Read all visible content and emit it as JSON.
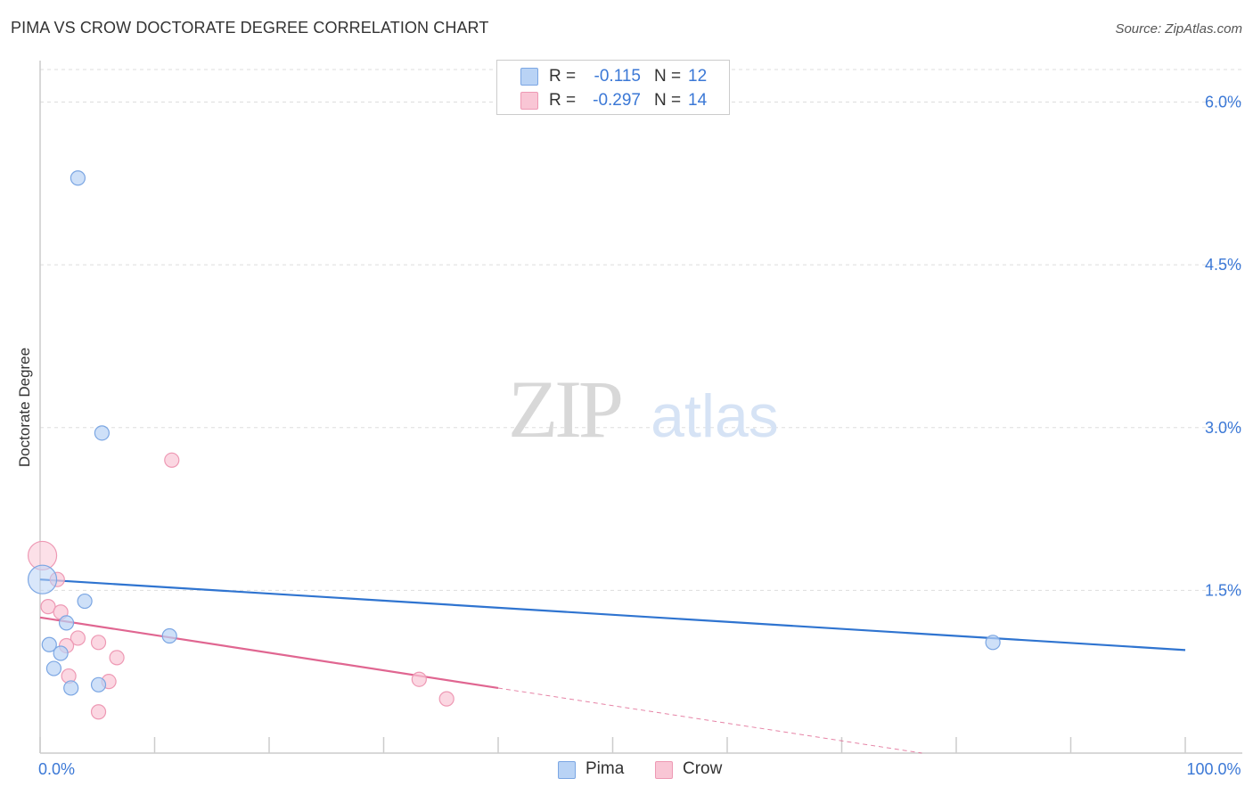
{
  "title": "PIMA VS CROW DOCTORATE DEGREE CORRELATION CHART",
  "source": "Source: ZipAtlas.com",
  "watermark": {
    "zip": "ZIP",
    "atlas": "atlas"
  },
  "legend_top": [
    {
      "series": "Pima",
      "r_label": "R =",
      "r_value": "-0.115",
      "n_label": "N =",
      "n_value": "12",
      "color": "#b9d3f5",
      "stroke": "#7ba6e3"
    },
    {
      "series": "Crow",
      "r_label": "R =",
      "r_value": "-0.297",
      "n_label": "N =",
      "n_value": "14",
      "color": "#f9c6d5",
      "stroke": "#ee99b4"
    }
  ],
  "legend_bottom": [
    {
      "label": "Pima",
      "color": "#b9d3f5",
      "stroke": "#7ba6e3"
    },
    {
      "label": "Crow",
      "color": "#f9c6d5",
      "stroke": "#ee99b4"
    }
  ],
  "colors": {
    "pima_line": "#2f74d0",
    "crow_line": "#e06691",
    "tick_label": "#3b78d6",
    "grid": "#dddddd",
    "axis": "#cccccc"
  },
  "chart_data": {
    "type": "scatter",
    "title": "PIMA VS CROW DOCTORATE DEGREE CORRELATION CHART",
    "xlabel": "",
    "ylabel": "Doctorate Degree",
    "xlim": [
      0,
      100
    ],
    "ylim": [
      0,
      6.3
    ],
    "x_tick_labels": [
      {
        "value": 0,
        "label": "0.0%"
      },
      {
        "value": 100,
        "label": "100.0%"
      }
    ],
    "y_tick_labels": [
      {
        "value": 6.0,
        "label": "6.0%"
      },
      {
        "value": 4.5,
        "label": "4.5%"
      },
      {
        "value": 3.0,
        "label": "3.0%"
      },
      {
        "value": 1.5,
        "label": "1.5%"
      }
    ],
    "x_minor_ticks": [
      0,
      10,
      20,
      30,
      40,
      50,
      60,
      70,
      80,
      90,
      100
    ],
    "series": [
      {
        "name": "Pima",
        "points": [
          {
            "x": 0.2,
            "y": 1.6,
            "size": 16
          },
          {
            "x": 3.3,
            "y": 5.3,
            "size": 8
          },
          {
            "x": 5.4,
            "y": 2.95,
            "size": 8
          },
          {
            "x": 3.9,
            "y": 1.4,
            "size": 8
          },
          {
            "x": 2.3,
            "y": 1.2,
            "size": 8
          },
          {
            "x": 0.8,
            "y": 1.0,
            "size": 8
          },
          {
            "x": 1.8,
            "y": 0.92,
            "size": 8
          },
          {
            "x": 11.3,
            "y": 1.08,
            "size": 8
          },
          {
            "x": 1.2,
            "y": 0.78,
            "size": 8
          },
          {
            "x": 2.7,
            "y": 0.6,
            "size": 8
          },
          {
            "x": 5.1,
            "y": 0.63,
            "size": 8
          },
          {
            "x": 83.2,
            "y": 1.02,
            "size": 8
          }
        ],
        "trend": {
          "x0": 0,
          "y0": 1.6,
          "x1": 100,
          "y1": 0.95
        }
      },
      {
        "name": "Crow",
        "points": [
          {
            "x": 0.2,
            "y": 1.82,
            "size": 16
          },
          {
            "x": 1.5,
            "y": 1.6,
            "size": 8
          },
          {
            "x": 0.7,
            "y": 1.35,
            "size": 8
          },
          {
            "x": 1.8,
            "y": 1.3,
            "size": 8
          },
          {
            "x": 11.5,
            "y": 2.7,
            "size": 8
          },
          {
            "x": 3.3,
            "y": 1.06,
            "size": 8
          },
          {
            "x": 2.3,
            "y": 0.99,
            "size": 8
          },
          {
            "x": 5.1,
            "y": 1.02,
            "size": 8
          },
          {
            "x": 6.7,
            "y": 0.88,
            "size": 8
          },
          {
            "x": 2.5,
            "y": 0.71,
            "size": 8
          },
          {
            "x": 6.0,
            "y": 0.66,
            "size": 8
          },
          {
            "x": 33.1,
            "y": 0.68,
            "size": 8
          },
          {
            "x": 35.5,
            "y": 0.5,
            "size": 8
          },
          {
            "x": 5.1,
            "y": 0.38,
            "size": 8
          }
        ],
        "trend": {
          "x0": 0,
          "y0": 1.25,
          "x1": 40,
          "y1": 0.6,
          "dash_to_x": 77,
          "dash_to_y": 0.0
        }
      }
    ],
    "grid": true,
    "legend_position": "top-center"
  }
}
